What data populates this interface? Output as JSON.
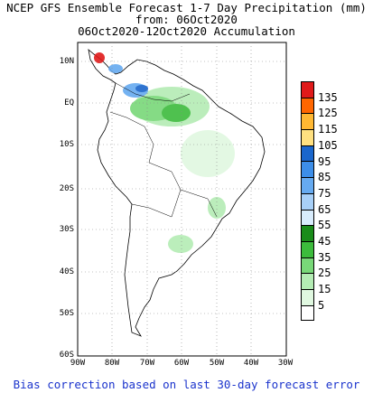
{
  "header": {
    "line1": "NCEP GFS Ensemble Forecast 1-7 Day Precipitation (mm)",
    "line2": "from: 06Oct2020",
    "line3": "06Oct2020-12Oct2020 Accumulation"
  },
  "axes": {
    "lat_labels": [
      "10N",
      "EQ",
      "10S",
      "20S",
      "30S",
      "40S",
      "50S",
      "60S"
    ],
    "lon_labels": [
      "90W",
      "80W",
      "70W",
      "60W",
      "50W",
      "40W",
      "30W"
    ]
  },
  "legend": {
    "levels": [
      "135",
      "125",
      "115",
      "105",
      "95",
      "85",
      "75",
      "65",
      "55",
      "45",
      "35",
      "25",
      "15",
      "5"
    ],
    "colors": [
      "#e01a1a",
      "#ff6600",
      "#ffb833",
      "#ffe080",
      "#1a66cc",
      "#3d8ee8",
      "#66aaf0",
      "#a8d0f8",
      "#d8ecfc",
      "#1a8c1a",
      "#3cbb3c",
      "#78d878",
      "#b4ecb4",
      "#e0f8e0",
      "#ffffff"
    ]
  },
  "footer": "Bias correction based on last 30-day forecast error"
}
